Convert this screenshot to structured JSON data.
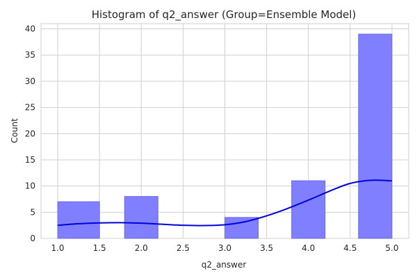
{
  "chart_data": {
    "type": "bar",
    "title": "Histogram of q2_answer (Group=Ensemble Model)",
    "xlabel": "q2_answer",
    "ylabel": "Count",
    "xlim": [
      0.8,
      5.2
    ],
    "ylim": [
      0,
      41
    ],
    "xticks": [
      "1.0",
      "1.5",
      "2.0",
      "2.5",
      "3.0",
      "3.5",
      "4.0",
      "4.5",
      "5.0"
    ],
    "yticks": [
      "0",
      "5",
      "10",
      "15",
      "20",
      "25",
      "30",
      "35",
      "40"
    ],
    "grid": true,
    "bins": [
      {
        "x0": 1.0,
        "x1": 1.5,
        "count": 7
      },
      {
        "x0": 1.8,
        "x1": 2.2,
        "count": 8
      },
      {
        "x0": 3.0,
        "x1": 3.4,
        "count": 4
      },
      {
        "x0": 3.8,
        "x1": 4.2,
        "count": 11
      },
      {
        "x0": 4.6,
        "x1": 5.0,
        "count": 39
      }
    ],
    "kde": {
      "x": [
        1.0,
        1.25,
        1.5,
        1.75,
        2.0,
        2.25,
        2.5,
        2.75,
        3.0,
        3.25,
        3.5,
        3.75,
        4.0,
        4.25,
        4.5,
        4.75,
        5.0
      ],
      "y": [
        2.5,
        2.8,
        2.95,
        3.0,
        2.9,
        2.7,
        2.5,
        2.45,
        2.6,
        3.2,
        4.3,
        5.7,
        7.3,
        9.0,
        10.5,
        11.1,
        11.0
      ]
    },
    "colors": {
      "bar": "#7f7fff",
      "bar_edge": "#6a6ae0",
      "kde": "#0000dd"
    }
  }
}
